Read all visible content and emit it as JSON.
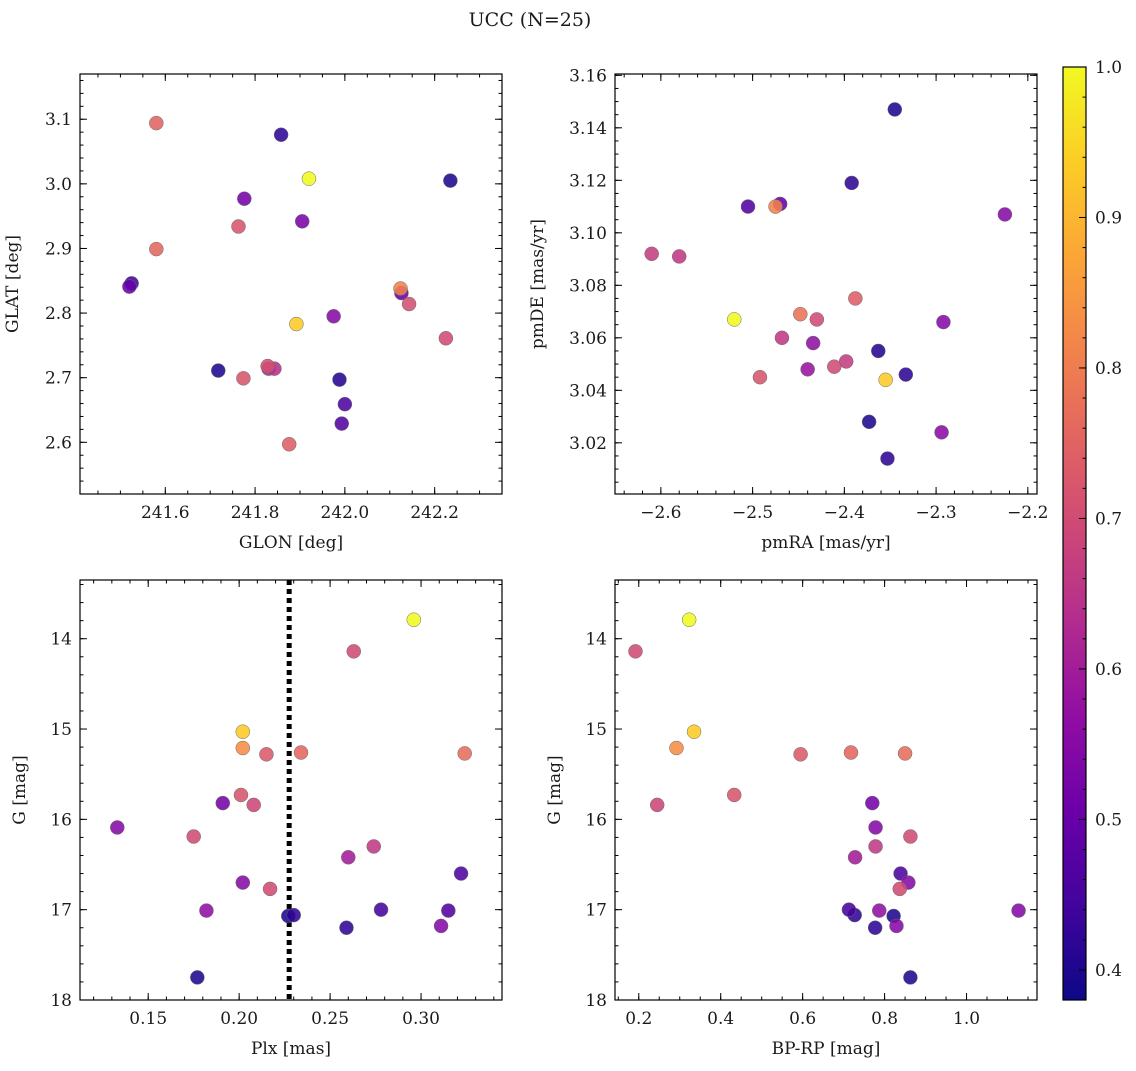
{
  "figure": {
    "title": "UCC (N=25)",
    "colorbar": {
      "colormap": "plasma",
      "range": [
        0.38,
        1.0
      ],
      "ticks": [
        0.4,
        0.5,
        0.6,
        0.7,
        0.8,
        0.9,
        1.0
      ],
      "tick_labels": [
        "0.4",
        "0.5",
        "0.6",
        "0.7",
        "0.8",
        "0.9",
        "1.0"
      ]
    }
  },
  "chart_data": [
    {
      "type": "scatter",
      "panel": "top-left",
      "xlabel": "GLON [deg]",
      "ylabel": "GLAT [deg]",
      "xlim": [
        241.41,
        242.35
      ],
      "ylim": [
        2.52,
        3.17
      ],
      "xticks": [
        241.6,
        241.8,
        242.0,
        242.2
      ],
      "xtick_labels": [
        "241.6",
        "241.8",
        "242.0",
        "242.2"
      ],
      "yticks": [
        2.6,
        2.7,
        2.8,
        2.9,
        3.0,
        3.1
      ],
      "ytick_labels": [
        "2.6",
        "2.7",
        "2.8",
        "2.9",
        "3.0",
        "3.1"
      ],
      "x_minor_step": 0.05,
      "y_minor_step": 0.02,
      "points": [
        {
          "x": 241.58,
          "y": 3.094,
          "c": 0.75
        },
        {
          "x": 241.858,
          "y": 3.076,
          "c": 0.42
        },
        {
          "x": 241.776,
          "y": 2.977,
          "c": 0.52
        },
        {
          "x": 241.92,
          "y": 3.008,
          "c": 1.0
        },
        {
          "x": 242.235,
          "y": 3.005,
          "c": 0.4
        },
        {
          "x": 241.905,
          "y": 2.942,
          "c": 0.53
        },
        {
          "x": 241.763,
          "y": 2.934,
          "c": 0.72
        },
        {
          "x": 241.58,
          "y": 2.899,
          "c": 0.76
        },
        {
          "x": 241.525,
          "y": 2.846,
          "c": 0.44
        },
        {
          "x": 241.52,
          "y": 2.841,
          "c": 0.5
        },
        {
          "x": 242.124,
          "y": 2.838,
          "c": 0.81
        },
        {
          "x": 242.126,
          "y": 2.831,
          "c": 0.5
        },
        {
          "x": 242.143,
          "y": 2.814,
          "c": 0.71
        },
        {
          "x": 241.892,
          "y": 2.783,
          "c": 0.93
        },
        {
          "x": 241.975,
          "y": 2.795,
          "c": 0.55
        },
        {
          "x": 242.225,
          "y": 2.761,
          "c": 0.7
        },
        {
          "x": 241.828,
          "y": 2.718,
          "c": 0.71
        },
        {
          "x": 241.843,
          "y": 2.714,
          "c": 0.64
        },
        {
          "x": 241.83,
          "y": 2.714,
          "c": 0.62
        },
        {
          "x": 241.718,
          "y": 2.711,
          "c": 0.4
        },
        {
          "x": 241.774,
          "y": 2.699,
          "c": 0.72
        },
        {
          "x": 241.988,
          "y": 2.697,
          "c": 0.41
        },
        {
          "x": 242.0,
          "y": 2.659,
          "c": 0.46
        },
        {
          "x": 241.993,
          "y": 2.629,
          "c": 0.47
        },
        {
          "x": 241.876,
          "y": 2.597,
          "c": 0.74
        }
      ]
    },
    {
      "type": "scatter",
      "panel": "top-right",
      "xlabel": "pmRA [mas/yr]",
      "ylabel": "pmDE [mas/yr]",
      "xlim": [
        -2.65,
        -2.19
      ],
      "ylim": [
        3.0005,
        3.1605
      ],
      "xticks": [
        -2.6,
        -2.5,
        -2.4,
        -2.3,
        -2.2
      ],
      "xtick_labels": [
        "−2.6",
        "−2.5",
        "−2.4",
        "−2.3",
        "−2.2"
      ],
      "yticks": [
        3.02,
        3.04,
        3.06,
        3.08,
        3.1,
        3.12,
        3.14,
        3.16
      ],
      "ytick_labels": [
        "3.02",
        "3.04",
        "3.06",
        "3.08",
        "3.10",
        "3.12",
        "3.14",
        "3.16"
      ],
      "x_minor_step": 0.02,
      "y_minor_step": 0.005,
      "points": [
        {
          "x": -2.345,
          "y": 3.147,
          "c": 0.4
        },
        {
          "x": -2.392,
          "y": 3.119,
          "c": 0.42
        },
        {
          "x": -2.505,
          "y": 3.11,
          "c": 0.47
        },
        {
          "x": -2.47,
          "y": 3.111,
          "c": 0.5
        },
        {
          "x": -2.475,
          "y": 3.11,
          "c": 0.81
        },
        {
          "x": -2.225,
          "y": 3.107,
          "c": 0.55
        },
        {
          "x": -2.61,
          "y": 3.092,
          "c": 0.67
        },
        {
          "x": -2.58,
          "y": 3.091,
          "c": 0.66
        },
        {
          "x": -2.388,
          "y": 3.075,
          "c": 0.74
        },
        {
          "x": -2.52,
          "y": 3.067,
          "c": 1.0
        },
        {
          "x": -2.448,
          "y": 3.069,
          "c": 0.78
        },
        {
          "x": -2.43,
          "y": 3.067,
          "c": 0.7
        },
        {
          "x": -2.292,
          "y": 3.066,
          "c": 0.55
        },
        {
          "x": -2.468,
          "y": 3.06,
          "c": 0.66
        },
        {
          "x": -2.434,
          "y": 3.058,
          "c": 0.57
        },
        {
          "x": -2.363,
          "y": 3.055,
          "c": 0.41
        },
        {
          "x": -2.398,
          "y": 3.051,
          "c": 0.67
        },
        {
          "x": -2.411,
          "y": 3.049,
          "c": 0.7
        },
        {
          "x": -2.44,
          "y": 3.048,
          "c": 0.58
        },
        {
          "x": -2.492,
          "y": 3.045,
          "c": 0.72
        },
        {
          "x": -2.333,
          "y": 3.046,
          "c": 0.42
        },
        {
          "x": -2.355,
          "y": 3.044,
          "c": 0.93
        },
        {
          "x": -2.373,
          "y": 3.028,
          "c": 0.4
        },
        {
          "x": -2.294,
          "y": 3.024,
          "c": 0.56
        },
        {
          "x": -2.353,
          "y": 3.014,
          "c": 0.42
        }
      ]
    },
    {
      "type": "scatter",
      "panel": "bottom-left",
      "xlabel": "Plx [mas]",
      "ylabel": "G [mag]",
      "y_inverted": true,
      "xlim": [
        0.1125,
        0.3445
      ],
      "ylim": [
        18.0,
        13.35
      ],
      "xticks": [
        0.15,
        0.2,
        0.25,
        0.3
      ],
      "xtick_labels": [
        "0.15",
        "0.20",
        "0.25",
        "0.30"
      ],
      "yticks": [
        14,
        15,
        16,
        17,
        18
      ],
      "ytick_labels": [
        "14",
        "15",
        "16",
        "17",
        "18"
      ],
      "x_minor_step": 0.01,
      "y_minor_step": 0.2,
      "vline": {
        "x": 0.2275,
        "style": "dotted",
        "color": "#000000"
      },
      "points": [
        {
          "x": 0.296,
          "y": 13.79,
          "c": 1.0
        },
        {
          "x": 0.263,
          "y": 14.14,
          "c": 0.7
        },
        {
          "x": 0.202,
          "y": 15.03,
          "c": 0.93
        },
        {
          "x": 0.202,
          "y": 15.21,
          "c": 0.83
        },
        {
          "x": 0.215,
          "y": 15.28,
          "c": 0.73
        },
        {
          "x": 0.234,
          "y": 15.26,
          "c": 0.76
        },
        {
          "x": 0.324,
          "y": 15.27,
          "c": 0.77
        },
        {
          "x": 0.201,
          "y": 15.73,
          "c": 0.72
        },
        {
          "x": 0.191,
          "y": 15.82,
          "c": 0.52
        },
        {
          "x": 0.208,
          "y": 15.84,
          "c": 0.69
        },
        {
          "x": 0.133,
          "y": 16.09,
          "c": 0.55
        },
        {
          "x": 0.175,
          "y": 16.19,
          "c": 0.7
        },
        {
          "x": 0.274,
          "y": 16.3,
          "c": 0.66
        },
        {
          "x": 0.26,
          "y": 16.42,
          "c": 0.6
        },
        {
          "x": 0.322,
          "y": 16.6,
          "c": 0.46
        },
        {
          "x": 0.202,
          "y": 16.7,
          "c": 0.55
        },
        {
          "x": 0.217,
          "y": 16.77,
          "c": 0.7
        },
        {
          "x": 0.182,
          "y": 17.01,
          "c": 0.57
        },
        {
          "x": 0.278,
          "y": 17.0,
          "c": 0.45
        },
        {
          "x": 0.315,
          "y": 17.01,
          "c": 0.47
        },
        {
          "x": 0.23,
          "y": 17.06,
          "c": 0.42
        },
        {
          "x": 0.227,
          "y": 17.07,
          "c": 0.4
        },
        {
          "x": 0.259,
          "y": 17.2,
          "c": 0.42
        },
        {
          "x": 0.311,
          "y": 17.18,
          "c": 0.55
        },
        {
          "x": 0.177,
          "y": 17.75,
          "c": 0.4
        }
      ]
    },
    {
      "type": "scatter",
      "panel": "bottom-right",
      "xlabel": "BP-RP [mag]",
      "ylabel": "G [mag]",
      "y_inverted": true,
      "xlim": [
        0.142,
        1.172
      ],
      "ylim": [
        18.0,
        13.35
      ],
      "xticks": [
        0.2,
        0.4,
        0.6,
        0.8,
        1.0
      ],
      "xtick_labels": [
        "0.2",
        "0.4",
        "0.6",
        "0.8",
        "1.0"
      ],
      "yticks": [
        14,
        15,
        16,
        17,
        18
      ],
      "ytick_labels": [
        "14",
        "15",
        "16",
        "17",
        "18"
      ],
      "x_minor_step": 0.05,
      "y_minor_step": 0.2,
      "points": [
        {
          "x": 0.323,
          "y": 13.79,
          "c": 1.0
        },
        {
          "x": 0.192,
          "y": 14.14,
          "c": 0.7
        },
        {
          "x": 0.335,
          "y": 15.03,
          "c": 0.93
        },
        {
          "x": 0.292,
          "y": 15.21,
          "c": 0.83
        },
        {
          "x": 0.595,
          "y": 15.28,
          "c": 0.73
        },
        {
          "x": 0.718,
          "y": 15.26,
          "c": 0.76
        },
        {
          "x": 0.85,
          "y": 15.27,
          "c": 0.77
        },
        {
          "x": 0.433,
          "y": 15.73,
          "c": 0.72
        },
        {
          "x": 0.245,
          "y": 15.84,
          "c": 0.69
        },
        {
          "x": 0.77,
          "y": 15.82,
          "c": 0.52
        },
        {
          "x": 0.778,
          "y": 16.09,
          "c": 0.55
        },
        {
          "x": 0.863,
          "y": 16.19,
          "c": 0.7
        },
        {
          "x": 0.778,
          "y": 16.3,
          "c": 0.66
        },
        {
          "x": 0.728,
          "y": 16.42,
          "c": 0.6
        },
        {
          "x": 0.839,
          "y": 16.6,
          "c": 0.46
        },
        {
          "x": 0.858,
          "y": 16.7,
          "c": 0.55
        },
        {
          "x": 0.837,
          "y": 16.77,
          "c": 0.7
        },
        {
          "x": 0.713,
          "y": 17.0,
          "c": 0.45
        },
        {
          "x": 0.787,
          "y": 17.01,
          "c": 0.57
        },
        {
          "x": 1.127,
          "y": 17.01,
          "c": 0.55
        },
        {
          "x": 0.727,
          "y": 17.06,
          "c": 0.42
        },
        {
          "x": 0.822,
          "y": 17.07,
          "c": 0.4
        },
        {
          "x": 0.777,
          "y": 17.2,
          "c": 0.42
        },
        {
          "x": 0.829,
          "y": 17.18,
          "c": 0.55
        },
        {
          "x": 0.863,
          "y": 17.75,
          "c": 0.4
        }
      ]
    }
  ]
}
